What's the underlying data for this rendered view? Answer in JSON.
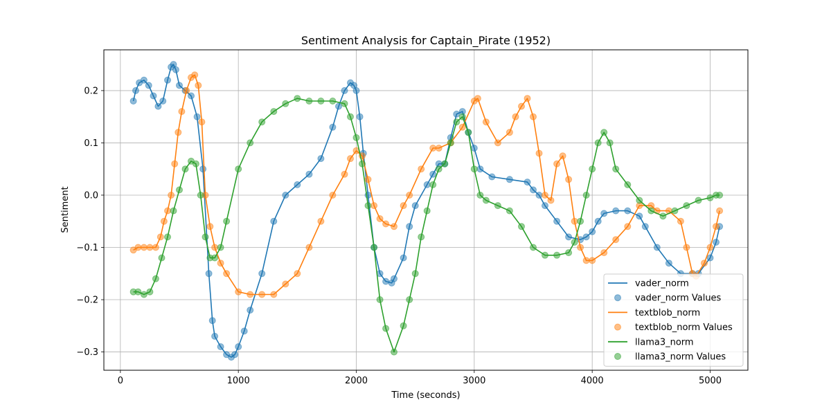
{
  "chart_data": {
    "type": "line",
    "title": "Sentiment Analysis for Captain_Pirate (1952)",
    "xlabel": "Time (seconds)",
    "ylabel": "Sentiment",
    "xlim": [
      -140,
      5320
    ],
    "ylim": [
      -0.335,
      0.278
    ],
    "x_ticks": [
      0,
      1000,
      2000,
      3000,
      4000,
      5000
    ],
    "y_ticks": [
      -0.3,
      -0.2,
      -0.1,
      0.0,
      0.1,
      0.2
    ],
    "x_tick_labels": [
      "0",
      "1000",
      "2000",
      "3000",
      "4000",
      "5000"
    ],
    "y_tick_labels": [
      "−0.3",
      "−0.2",
      "−0.1",
      "0.0",
      "0.1",
      "0.2"
    ],
    "grid": true,
    "legend_position": "lower-right",
    "legend": [
      {
        "label": "vader_norm",
        "kind": "line",
        "series": 0
      },
      {
        "label": "vader_norm Values",
        "kind": "marker",
        "series": 0
      },
      {
        "label": "textblob_norm",
        "kind": "line",
        "series": 1
      },
      {
        "label": "textblob_norm Values",
        "kind": "marker",
        "series": 1
      },
      {
        "label": "llama3_norm",
        "kind": "line",
        "series": 2
      },
      {
        "label": "llama3_norm Values",
        "kind": "marker",
        "series": 2
      }
    ],
    "series": [
      {
        "name": "vader_norm",
        "color": "#1f77b4",
        "x": [
          110,
          130,
          160,
          200,
          240,
          280,
          320,
          360,
          400,
          430,
          450,
          470,
          500,
          550,
          600,
          650,
          700,
          750,
          780,
          800,
          850,
          900,
          940,
          970,
          1000,
          1050,
          1100,
          1200,
          1300,
          1400,
          1500,
          1600,
          1700,
          1800,
          1850,
          1900,
          1950,
          1980,
          2000,
          2030,
          2060,
          2100,
          2150,
          2200,
          2250,
          2300,
          2320,
          2400,
          2450,
          2500,
          2600,
          2650,
          2700,
          2750,
          2800,
          2850,
          2900,
          2950,
          3000,
          3050,
          3150,
          3300,
          3450,
          3500,
          3550,
          3600,
          3700,
          3800,
          3900,
          3950,
          4000,
          4050,
          4100,
          4200,
          4300,
          4400,
          4450,
          4550,
          4650,
          4750,
          4850,
          4900,
          5000,
          5050,
          5080
        ],
        "y": [
          0.18,
          0.2,
          0.215,
          0.22,
          0.21,
          0.19,
          0.17,
          0.18,
          0.22,
          0.245,
          0.25,
          0.24,
          0.21,
          0.2,
          0.19,
          0.15,
          0.05,
          -0.15,
          -0.24,
          -0.27,
          -0.29,
          -0.305,
          -0.31,
          -0.305,
          -0.29,
          -0.26,
          -0.22,
          -0.15,
          -0.05,
          0.0,
          0.02,
          0.04,
          0.07,
          0.13,
          0.17,
          0.2,
          0.215,
          0.21,
          0.2,
          0.15,
          0.08,
          0.0,
          -0.1,
          -0.15,
          -0.165,
          -0.168,
          -0.16,
          -0.12,
          -0.06,
          -0.02,
          0.02,
          0.04,
          0.06,
          0.06,
          0.11,
          0.155,
          0.16,
          0.12,
          0.09,
          0.05,
          0.035,
          0.03,
          0.025,
          0.01,
          0.0,
          -0.02,
          -0.05,
          -0.08,
          -0.085,
          -0.08,
          -0.07,
          -0.05,
          -0.035,
          -0.03,
          -0.03,
          -0.04,
          -0.06,
          -0.1,
          -0.13,
          -0.15,
          -0.15,
          -0.15,
          -0.12,
          -0.09,
          -0.06
        ]
      },
      {
        "name": "textblob_norm",
        "color": "#ff7f0e",
        "x": [
          110,
          150,
          200,
          250,
          300,
          340,
          370,
          400,
          430,
          460,
          490,
          520,
          560,
          600,
          630,
          660,
          690,
          720,
          760,
          800,
          850,
          900,
          1000,
          1100,
          1200,
          1300,
          1400,
          1500,
          1600,
          1700,
          1800,
          1900,
          1950,
          2000,
          2050,
          2100,
          2150,
          2200,
          2250,
          2320,
          2400,
          2450,
          2550,
          2650,
          2700,
          2800,
          2900,
          3000,
          3030,
          3100,
          3200,
          3300,
          3350,
          3400,
          3450,
          3500,
          3550,
          3600,
          3650,
          3700,
          3750,
          3800,
          3850,
          3900,
          3950,
          4000,
          4100,
          4200,
          4300,
          4400,
          4500,
          4550,
          4650,
          4750,
          4800,
          4850,
          4880,
          4950,
          5000,
          5050,
          5080
        ],
        "y": [
          -0.105,
          -0.1,
          -0.1,
          -0.1,
          -0.1,
          -0.08,
          -0.05,
          -0.03,
          0.0,
          0.06,
          0.12,
          0.16,
          0.2,
          0.225,
          0.23,
          0.21,
          0.14,
          0.0,
          -0.06,
          -0.1,
          -0.13,
          -0.15,
          -0.185,
          -0.19,
          -0.19,
          -0.19,
          -0.17,
          -0.15,
          -0.1,
          -0.05,
          0.0,
          0.04,
          0.07,
          0.085,
          0.075,
          0.03,
          -0.02,
          -0.045,
          -0.055,
          -0.06,
          -0.02,
          0.0,
          0.05,
          0.09,
          0.09,
          0.1,
          0.13,
          0.18,
          0.185,
          0.14,
          0.1,
          0.12,
          0.15,
          0.17,
          0.185,
          0.15,
          0.08,
          0.0,
          -0.01,
          0.06,
          0.075,
          0.03,
          -0.05,
          -0.1,
          -0.125,
          -0.125,
          -0.11,
          -0.085,
          -0.06,
          -0.02,
          -0.02,
          -0.03,
          -0.03,
          -0.05,
          -0.1,
          -0.15,
          -0.155,
          -0.13,
          -0.1,
          -0.06,
          -0.03
        ]
      },
      {
        "name": "llama3_norm",
        "color": "#2ca02c",
        "x": [
          110,
          150,
          200,
          250,
          300,
          350,
          400,
          450,
          500,
          550,
          600,
          640,
          680,
          720,
          760,
          800,
          850,
          900,
          1000,
          1100,
          1200,
          1300,
          1400,
          1500,
          1600,
          1700,
          1800,
          1900,
          1950,
          2000,
          2050,
          2100,
          2150,
          2200,
          2250,
          2320,
          2400,
          2450,
          2500,
          2550,
          2600,
          2650,
          2700,
          2750,
          2800,
          2850,
          2900,
          2950,
          3000,
          3050,
          3100,
          3200,
          3300,
          3400,
          3500,
          3600,
          3700,
          3800,
          3850,
          3900,
          3950,
          4000,
          4050,
          4100,
          4150,
          4200,
          4300,
          4400,
          4500,
          4600,
          4700,
          4800,
          4900,
          5000,
          5050,
          5080
        ],
        "y": [
          -0.185,
          -0.185,
          -0.19,
          -0.185,
          -0.16,
          -0.12,
          -0.08,
          -0.03,
          0.01,
          0.05,
          0.065,
          0.06,
          0.0,
          -0.08,
          -0.12,
          -0.12,
          -0.1,
          -0.05,
          0.05,
          0.1,
          0.14,
          0.16,
          0.175,
          0.185,
          0.18,
          0.18,
          0.18,
          0.175,
          0.15,
          0.11,
          0.06,
          -0.02,
          -0.1,
          -0.2,
          -0.255,
          -0.3,
          -0.25,
          -0.2,
          -0.15,
          -0.08,
          -0.03,
          0.02,
          0.05,
          0.06,
          0.1,
          0.14,
          0.15,
          0.12,
          0.05,
          0.0,
          -0.01,
          -0.02,
          -0.03,
          -0.06,
          -0.1,
          -0.115,
          -0.115,
          -0.11,
          -0.09,
          -0.05,
          0.0,
          0.05,
          0.1,
          0.12,
          0.1,
          0.05,
          0.02,
          -0.01,
          -0.03,
          -0.04,
          -0.03,
          -0.02,
          -0.01,
          -0.005,
          0.0,
          0.0
        ]
      }
    ]
  }
}
